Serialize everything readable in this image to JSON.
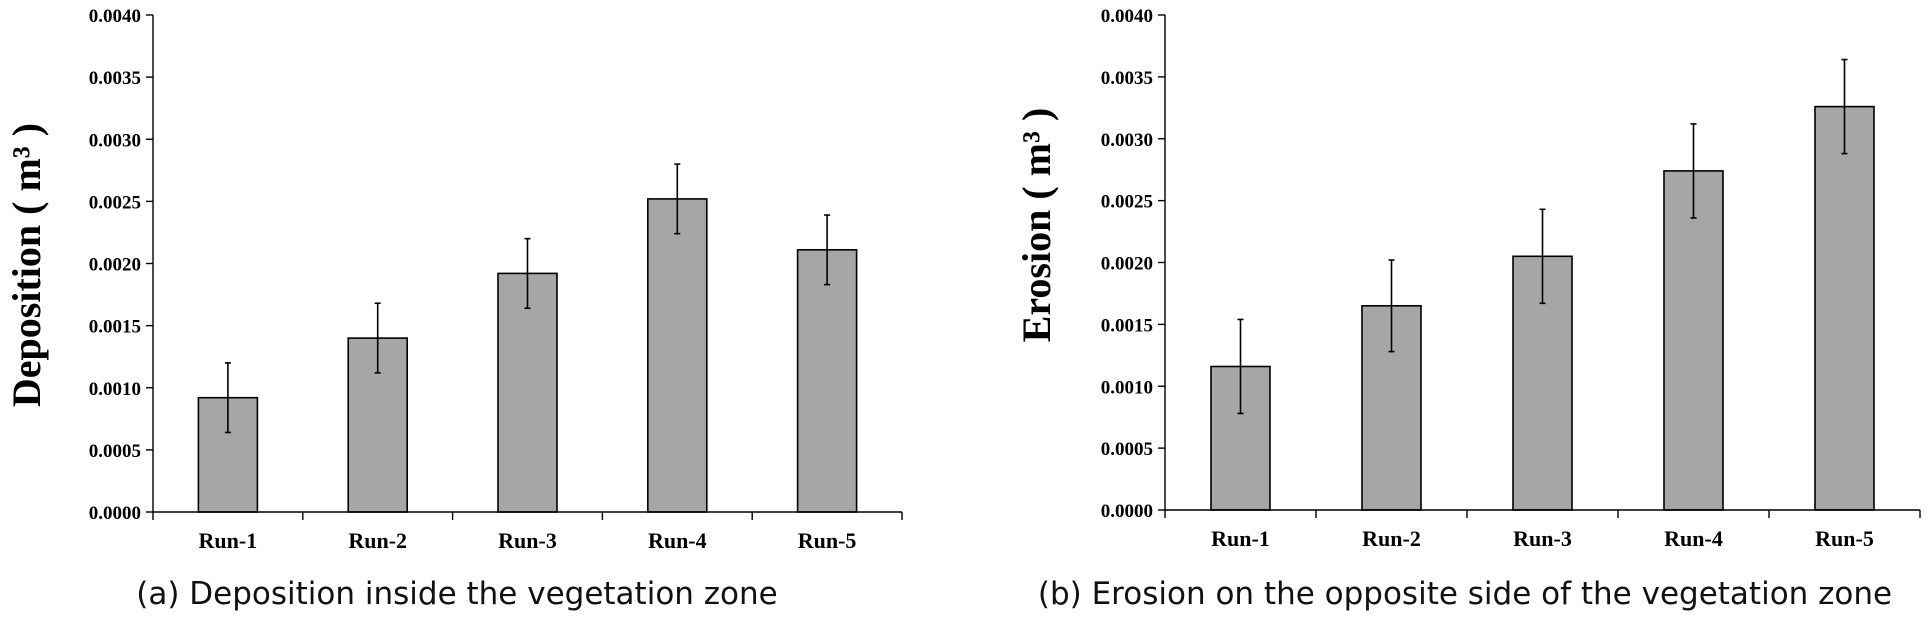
{
  "chart_data": [
    {
      "type": "bar",
      "caption": "(a) Deposition inside the vegetation zone",
      "ylabel": "Deposition ( m³ )",
      "xlabel": "",
      "categories": [
        "Run-1",
        "Run-2",
        "Run-3",
        "Run-4",
        "Run-5"
      ],
      "values": [
        0.00092,
        0.0014,
        0.00192,
        0.00252,
        0.00211
      ],
      "errors": [
        0.00028,
        0.00028,
        0.00028,
        0.00028,
        0.00028
      ],
      "ylim": [
        0,
        0.004
      ],
      "yticks": [
        "0.0000",
        "0.0005",
        "0.0010",
        "0.0015",
        "0.0020",
        "0.0025",
        "0.0030",
        "0.0035",
        "0.0040"
      ],
      "grid": false,
      "bar_color": "#a6a6a6"
    },
    {
      "type": "bar",
      "caption": "(b) Erosion on the opposite side of the vegetation zone",
      "ylabel": "Erosion ( m³ )",
      "xlabel": "",
      "categories": [
        "Run-1",
        "Run-2",
        "Run-3",
        "Run-4",
        "Run-5"
      ],
      "values": [
        0.00116,
        0.00165,
        0.00205,
        0.00274,
        0.00326
      ],
      "errors": [
        0.00038,
        0.00037,
        0.00038,
        0.00038,
        0.00038
      ],
      "ylim": [
        0,
        0.004
      ],
      "yticks": [
        "0.0000",
        "0.0005",
        "0.0010",
        "0.0015",
        "0.0020",
        "0.0025",
        "0.0030",
        "0.0035",
        "0.0040"
      ],
      "grid": false,
      "bar_color": "#a6a6a6"
    }
  ]
}
